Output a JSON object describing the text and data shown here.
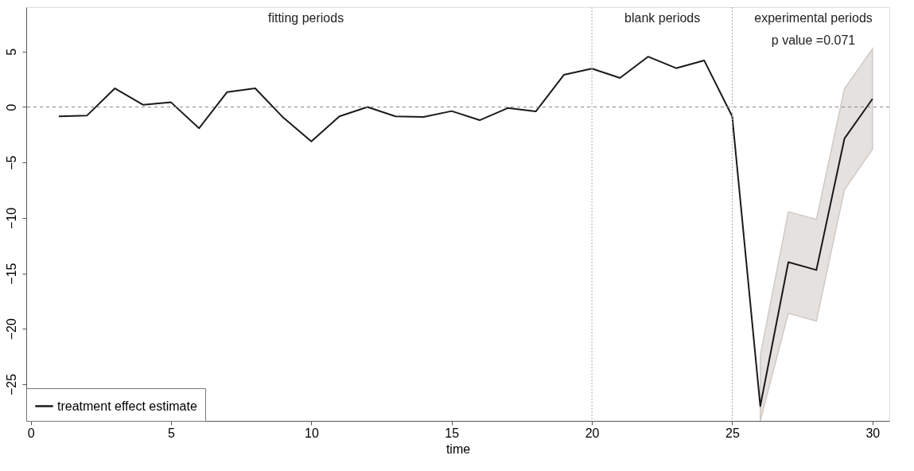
{
  "chart_data": {
    "type": "line",
    "xlabel": "time",
    "x": [
      1,
      2,
      3,
      4,
      5,
      6,
      7,
      8,
      9,
      10,
      11,
      12,
      13,
      14,
      15,
      16,
      17,
      18,
      19,
      20,
      21,
      22,
      23,
      24,
      25,
      26,
      27,
      28,
      29,
      30
    ],
    "series": [
      {
        "name": "treatment effect estimate",
        "color": "#1a1a1a",
        "values": [
          -0.85,
          -0.78,
          1.68,
          0.2,
          0.42,
          -1.92,
          1.35,
          1.68,
          -0.96,
          -3.1,
          -0.85,
          0,
          -0.85,
          -0.9,
          -0.37,
          -1.19,
          -0.1,
          -0.4,
          2.9,
          3.46,
          2.62,
          4.54,
          3.5,
          4.2,
          -0.85,
          -26.97,
          -13.99,
          -14.7,
          -2.85,
          0.73
        ],
        "lower": [
          null,
          null,
          null,
          null,
          null,
          null,
          null,
          null,
          null,
          null,
          null,
          null,
          null,
          null,
          null,
          null,
          null,
          null,
          null,
          null,
          null,
          null,
          null,
          null,
          null,
          -28.3,
          -18.6,
          -19.3,
          -7.46,
          -3.81
        ],
        "upper": [
          null,
          null,
          null,
          null,
          null,
          null,
          null,
          null,
          null,
          null,
          null,
          null,
          null,
          null,
          null,
          null,
          null,
          null,
          null,
          null,
          null,
          null,
          null,
          null,
          null,
          -22.4,
          -9.44,
          -10.14,
          1.65,
          5.25
        ]
      }
    ],
    "xlim": [
      -0.16,
      30.6
    ],
    "ylim": [
      -28.3,
      9
    ],
    "xticks": [
      0,
      5,
      10,
      15,
      20,
      25,
      30
    ],
    "yticks": [
      -25,
      -20,
      -15,
      -10,
      -5,
      0,
      5
    ],
    "ref_lines": [
      {
        "axis": "y",
        "value": 0,
        "color": "#888888",
        "line_style": "dashed"
      },
      {
        "axis": "x",
        "value": 20,
        "color": "#aaaaaa",
        "line_style": "dotted"
      },
      {
        "axis": "x",
        "value": 25,
        "color": "#aaaaaa",
        "line_style": "dotted"
      }
    ],
    "annotations": [
      "fitting periods",
      "blank periods",
      "experimental periods",
      "p value =0.071"
    ],
    "legend": "bottom left",
    "grid": false,
    "line_style": "solid",
    "marker": "none"
  }
}
